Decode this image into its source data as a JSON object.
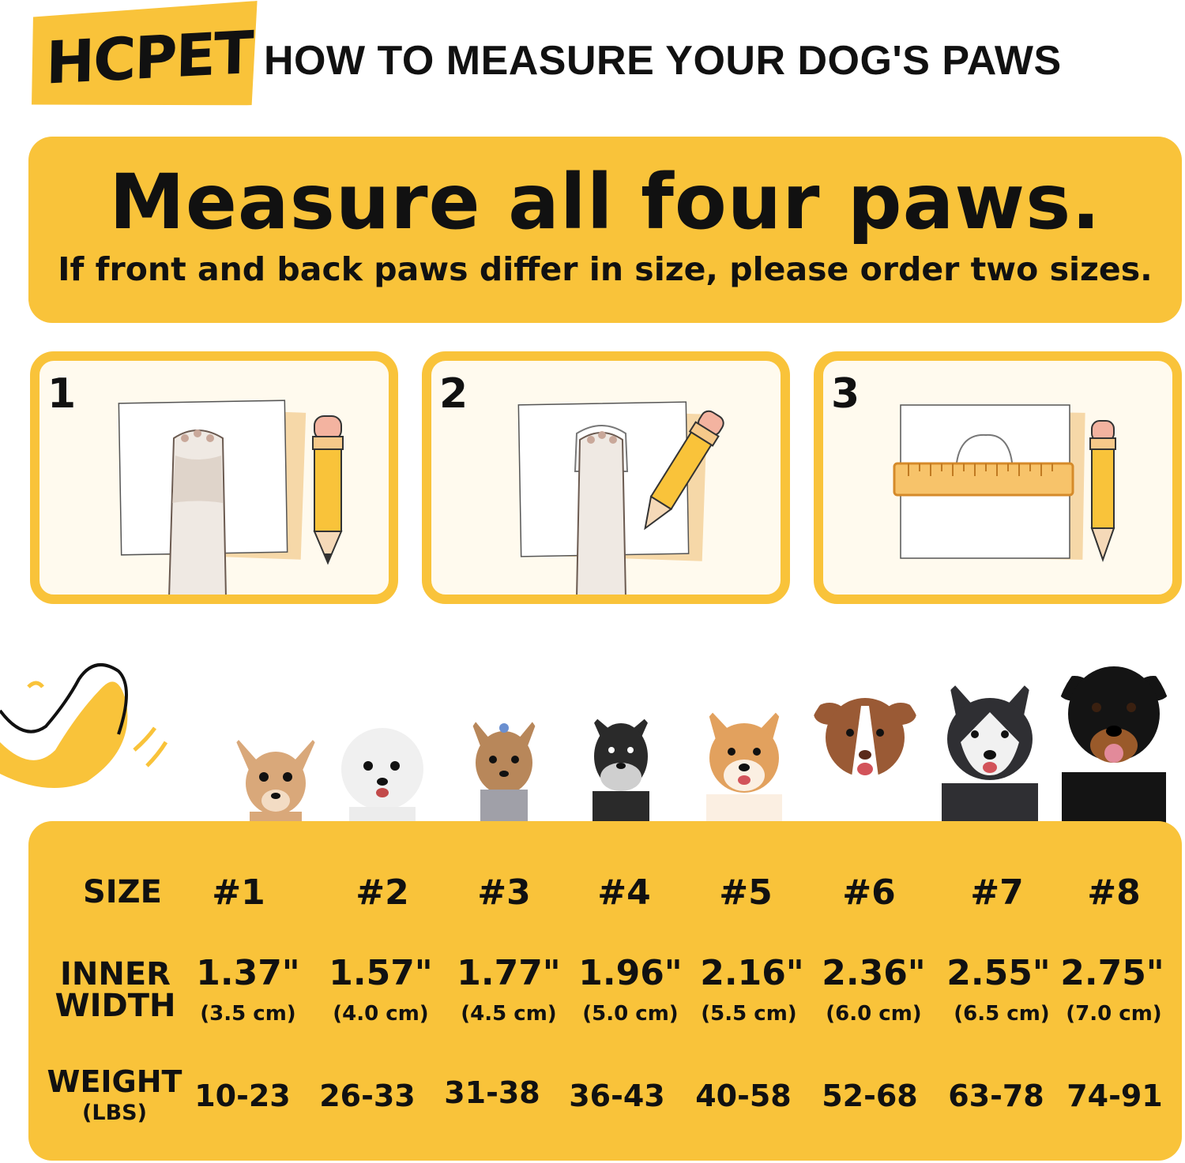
{
  "header": {
    "logo": "HCPET",
    "title": "HOW TO MEASURE YOUR DOG'S PAWS"
  },
  "banner": {
    "title": "Measure all four paws.",
    "subtitle": "If front and back paws differ in size, please order two sizes."
  },
  "steps": [
    {
      "number": "1"
    },
    {
      "number": "2"
    },
    {
      "number": "3"
    }
  ],
  "colors": {
    "accent": "#f9c33a",
    "panel_bg": "#fffaee",
    "text": "#111111"
  },
  "dogs": [
    {
      "name": "chihuahua",
      "fur": "#d9a87a"
    },
    {
      "name": "bichon",
      "fur": "#f4f4f4"
    },
    {
      "name": "yorkie",
      "fur": "#b8875a"
    },
    {
      "name": "schnauzer",
      "fur": "#2a2a2a"
    },
    {
      "name": "shiba",
      "fur": "#e2a15e"
    },
    {
      "name": "aussie",
      "fur": "#9a5a35"
    },
    {
      "name": "husky",
      "fur": "#2f2f33"
    },
    {
      "name": "rottweiler",
      "fur": "#141414"
    }
  ],
  "size_table": {
    "size_label": "SIZE",
    "inner_label_line1": "INNER",
    "inner_label_line2": "WIDTH",
    "weight_label": "WEIGHT",
    "weight_unit": "(LBS)",
    "sizes": [
      {
        "size": "#1",
        "inch": "1.37\"",
        "cm": "(3.5 cm)",
        "weight": "10-23"
      },
      {
        "size": "#2",
        "inch": "1.57\"",
        "cm": "(4.0 cm)",
        "weight": "26-33"
      },
      {
        "size": "#3",
        "inch": "1.77\"",
        "cm": "(4.5 cm)",
        "weight": "31-38"
      },
      {
        "size": "#4",
        "inch": "1.96\"",
        "cm": "(5.0 cm)",
        "weight": "36-43"
      },
      {
        "size": "#5",
        "inch": "2.16\"",
        "cm": "(5.5 cm)",
        "weight": "40-58"
      },
      {
        "size": "#6",
        "inch": "2.36\"",
        "cm": "(6.0 cm)",
        "weight": "52-68"
      },
      {
        "size": "#7",
        "inch": "2.55\"",
        "cm": "(6.5 cm)",
        "weight": "63-78"
      },
      {
        "size": "#8",
        "inch": "2.75\"",
        "cm": "(7.0 cm)",
        "weight": "74-91"
      }
    ]
  }
}
